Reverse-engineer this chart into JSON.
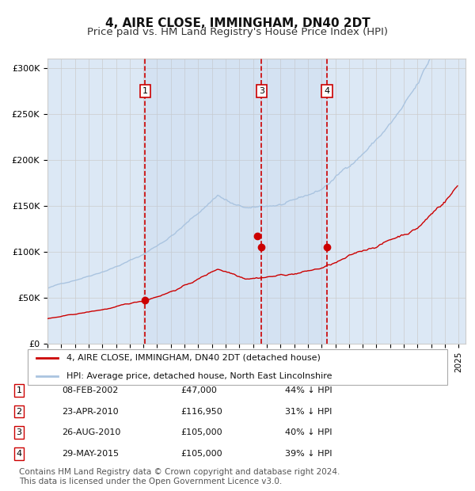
{
  "title": "4, AIRE CLOSE, IMMINGHAM, DN40 2DT",
  "subtitle": "Price paid vs. HM Land Registry's House Price Index (HPI)",
  "title_fontsize": 11,
  "subtitle_fontsize": 9.5,
  "background_color": "#ffffff",
  "plot_bg_color": "#dce8f5",
  "ylabel": "",
  "ylim": [
    0,
    310000
  ],
  "yticks": [
    0,
    50000,
    100000,
    150000,
    200000,
    250000,
    300000
  ],
  "ytick_labels": [
    "£0",
    "£50K",
    "£100K",
    "£150K",
    "£200K",
    "£250K",
    "£300K"
  ],
  "hpi_color": "#aac4e0",
  "price_color": "#cc0000",
  "marker_color": "#cc0000",
  "vline_color": "#cc0000",
  "grid_color": "#cccccc",
  "sale_dates": [
    "2002-02-08",
    "2010-04-23",
    "2010-08-26",
    "2015-05-29"
  ],
  "sale_prices": [
    47000,
    116950,
    105000,
    105000
  ],
  "sale_labels": [
    "1",
    "2",
    "3",
    "4"
  ],
  "legend_label_price": "4, AIRE CLOSE, IMMINGHAM, DN40 2DT (detached house)",
  "legend_label_hpi": "HPI: Average price, detached house, North East Lincolnshire",
  "table_rows": [
    [
      "1",
      "08-FEB-2002",
      "£47,000",
      "44% ↓ HPI"
    ],
    [
      "2",
      "23-APR-2010",
      "£116,950",
      "31% ↓ HPI"
    ],
    [
      "3",
      "26-AUG-2010",
      "£105,000",
      "40% ↓ HPI"
    ],
    [
      "4",
      "29-MAY-2015",
      "£105,000",
      "39% ↓ HPI"
    ]
  ],
  "footnote": "Contains HM Land Registry data © Crown copyright and database right 2024.\nThis data is licensed under the Open Government Licence v3.0.",
  "footnote_fontsize": 7.5
}
